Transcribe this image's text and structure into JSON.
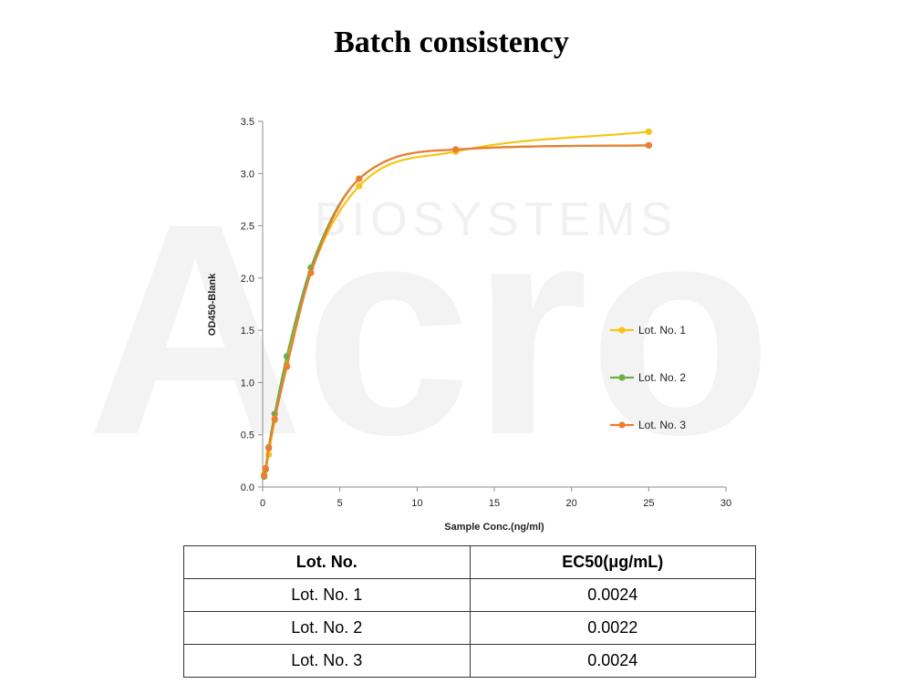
{
  "page": {
    "title": "Batch consistency",
    "watermark": {
      "logo": "Acro",
      "text": "BIOSYSTEMS"
    }
  },
  "chart_data": {
    "type": "line",
    "title": "Batch consistency",
    "xlabel": "Sample Conc.(ng/ml)",
    "ylabel": "OD450-Blank",
    "xlim": [
      0,
      30
    ],
    "ylim": [
      0,
      3.5
    ],
    "xticks": [
      0,
      5,
      10,
      15,
      20,
      25,
      30
    ],
    "yticks": [
      0.0,
      0.5,
      1.0,
      1.5,
      2.0,
      2.5,
      3.0,
      3.5
    ],
    "ytick_labels": [
      "0.0",
      "0.5",
      "1.0",
      "1.5",
      "2.0",
      "2.5",
      "3.0",
      "3.5"
    ],
    "grid": false,
    "legend_position": "right",
    "series": [
      {
        "name": "Lot. No. 1",
        "color": "#F5C518",
        "x": [
          0.098,
          0.195,
          0.391,
          0.781,
          1.563,
          3.125,
          6.25,
          12.5,
          25
        ],
        "y": [
          0.12,
          0.17,
          0.31,
          0.64,
          1.17,
          2.05,
          2.88,
          3.21,
          3.4
        ]
      },
      {
        "name": "Lot. No. 2",
        "color": "#70AD47",
        "x": [
          0.098,
          0.195,
          0.391,
          0.781,
          1.563,
          3.125,
          6.25,
          12.5,
          25
        ],
        "y": [
          0.1,
          0.17,
          0.38,
          0.7,
          1.25,
          2.1,
          2.95,
          3.23,
          3.27
        ]
      },
      {
        "name": "Lot. No. 3",
        "color": "#ED7D31",
        "x": [
          0.098,
          0.195,
          0.391,
          0.781,
          1.563,
          3.125,
          6.25,
          12.5,
          25
        ],
        "y": [
          0.11,
          0.18,
          0.37,
          0.65,
          1.15,
          2.05,
          2.95,
          3.23,
          3.27
        ]
      }
    ]
  },
  "table": {
    "headers": [
      "Lot. No.",
      "EC50(μg/mL)"
    ],
    "rows": [
      [
        "Lot. No. 1",
        "0.0024"
      ],
      [
        "Lot. No. 2",
        "0.0022"
      ],
      [
        "Lot. No. 3",
        "0.0024"
      ]
    ]
  }
}
